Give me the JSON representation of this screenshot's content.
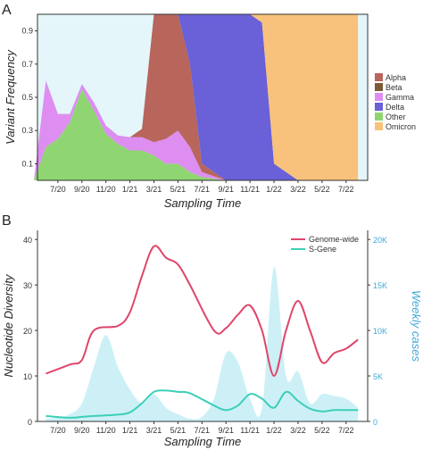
{
  "panels": [
    {
      "letter": "A"
    },
    {
      "letter": "B"
    }
  ],
  "chart_data": [
    {
      "type": "area",
      "stacked": true,
      "normalized": true,
      "title": "",
      "xlabel": "Sampling Time",
      "ylabel": "Variant Frequency",
      "x_tick_labels": [
        "7/20",
        "9/20",
        "11/20",
        "1/21",
        "3/21",
        "5/21",
        "7/21",
        "9/21",
        "11/21",
        "1/22",
        "3/22",
        "5/22",
        "7/22"
      ],
      "y_ticks": [
        0.1,
        0.3,
        0.5,
        0.7,
        0.9
      ],
      "y_tick_labels": [
        "0.1",
        "0.3",
        "0.5",
        "0.7",
        "0.9"
      ],
      "ylim": [
        0,
        1
      ],
      "legend_position": "right",
      "colors": {
        "Alpha": "#b8655c",
        "Beta": "#7b5a3a",
        "Gamma": "#dd8ef0",
        "Delta": "#6a60d8",
        "Other": "#8fd672",
        "Omicron": "#f8c27c",
        "Ancestral": "#e4f6fa"
      },
      "series_order": [
        "Other",
        "Gamma",
        "Alpha",
        "Delta",
        "Omicron"
      ],
      "legend": [
        "Alpha",
        "Beta",
        "Gamma",
        "Delta",
        "Other",
        "Omicron"
      ],
      "points": [
        {
          "x": "5/20",
          "Other": 0.0,
          "Gamma": 0.0,
          "Alpha": 0.0,
          "Delta": 0.0,
          "Omicron": 0.0
        },
        {
          "x": "6/20",
          "Other": 0.2,
          "Gamma": 0.4,
          "Alpha": 0.0,
          "Delta": 0.0,
          "Omicron": 0.0
        },
        {
          "x": "7/20",
          "Other": 0.25,
          "Gamma": 0.15,
          "Alpha": 0.0,
          "Delta": 0.0,
          "Omicron": 0.0
        },
        {
          "x": "8/20",
          "Other": 0.35,
          "Gamma": 0.05,
          "Alpha": 0.0,
          "Delta": 0.0,
          "Omicron": 0.0
        },
        {
          "x": "9/20",
          "Other": 0.55,
          "Gamma": 0.03,
          "Alpha": 0.0,
          "Delta": 0.0,
          "Omicron": 0.0
        },
        {
          "x": "10/20",
          "Other": 0.42,
          "Gamma": 0.05,
          "Alpha": 0.0,
          "Delta": 0.0,
          "Omicron": 0.0
        },
        {
          "x": "11/20",
          "Other": 0.28,
          "Gamma": 0.05,
          "Alpha": 0.0,
          "Delta": 0.0,
          "Omicron": 0.0
        },
        {
          "x": "12/20",
          "Other": 0.22,
          "Gamma": 0.05,
          "Alpha": 0.0,
          "Delta": 0.0,
          "Omicron": 0.0
        },
        {
          "x": "1/21",
          "Other": 0.18,
          "Gamma": 0.08,
          "Alpha": 0.0,
          "Delta": 0.0,
          "Omicron": 0.0
        },
        {
          "x": "2/21",
          "Other": 0.18,
          "Gamma": 0.08,
          "Alpha": 0.05,
          "Delta": 0.0,
          "Omicron": 0.0
        },
        {
          "x": "3/21",
          "Other": 0.15,
          "Gamma": 0.08,
          "Alpha": 0.77,
          "Delta": 0.0,
          "Omicron": 0.0
        },
        {
          "x": "4/21",
          "Other": 0.1,
          "Gamma": 0.15,
          "Alpha": 0.75,
          "Delta": 0.0,
          "Omicron": 0.0
        },
        {
          "x": "5/21",
          "Other": 0.1,
          "Gamma": 0.2,
          "Alpha": 0.7,
          "Delta": 0.0,
          "Omicron": 0.0
        },
        {
          "x": "6/21",
          "Other": 0.05,
          "Gamma": 0.15,
          "Alpha": 0.5,
          "Delta": 0.3,
          "Omicron": 0.0
        },
        {
          "x": "7/21",
          "Other": 0.02,
          "Gamma": 0.03,
          "Alpha": 0.05,
          "Delta": 0.9,
          "Omicron": 0.0
        },
        {
          "x": "9/21",
          "Other": 0.0,
          "Gamma": 0.0,
          "Alpha": 0.0,
          "Delta": 1.0,
          "Omicron": 0.0
        },
        {
          "x": "11/21",
          "Other": 0.0,
          "Gamma": 0.0,
          "Alpha": 0.0,
          "Delta": 1.0,
          "Omicron": 0.0
        },
        {
          "x": "12/21",
          "Other": 0.0,
          "Gamma": 0.0,
          "Alpha": 0.0,
          "Delta": 0.95,
          "Omicron": 0.05
        },
        {
          "x": "1/22",
          "Other": 0.0,
          "Gamma": 0.0,
          "Alpha": 0.0,
          "Delta": 0.1,
          "Omicron": 0.9
        },
        {
          "x": "3/22",
          "Other": 0.0,
          "Gamma": 0.0,
          "Alpha": 0.0,
          "Delta": 0.0,
          "Omicron": 1.0
        },
        {
          "x": "5/22",
          "Other": 0.0,
          "Gamma": 0.0,
          "Alpha": 0.0,
          "Delta": 0.0,
          "Omicron": 1.0
        },
        {
          "x": "7/22",
          "Other": 0.0,
          "Gamma": 0.0,
          "Alpha": 0.0,
          "Delta": 0.0,
          "Omicron": 1.0
        },
        {
          "x": "8/22",
          "Other": 0.0,
          "Gamma": 0.0,
          "Alpha": 0.0,
          "Delta": 0.0,
          "Omicron": 1.0
        }
      ]
    },
    {
      "type": "line",
      "title": "",
      "xlabel": "Sampling Time",
      "ylabel": "Nucleotide Diversity",
      "ylabel_right": "Weekly cases",
      "x_tick_labels": [
        "7/20",
        "9/20",
        "11/20",
        "1/21",
        "3/21",
        "5/21",
        "7/21",
        "9/21",
        "11/21",
        "1/22",
        "3/22",
        "5/22",
        "7/22"
      ],
      "y_ticks": [
        0,
        10,
        20,
        30,
        40
      ],
      "y_tick_labels": [
        "0",
        "10",
        "20",
        "30",
        "40"
      ],
      "y2_ticks": [
        0,
        5000,
        10000,
        15000,
        20000
      ],
      "y2_tick_labels": [
        "0",
        "5K",
        "10K",
        "15K",
        "20K"
      ],
      "ylim": [
        0,
        42
      ],
      "y2lim": [
        0,
        21000
      ],
      "legend_position": "top-right",
      "grid": false,
      "series": [
        {
          "name": "Genome-wide",
          "color": "#e0456a",
          "x": [
            "6/20",
            "8/20",
            "9/20",
            "10/20",
            "12/20",
            "1/21",
            "2/21",
            "3/21",
            "4/21",
            "5/21",
            "6/21",
            "8/21",
            "9/21",
            "10/21",
            "11/21",
            "12/21",
            "1/22",
            "2/22",
            "3/22",
            "4/22",
            "5/22",
            "6/22",
            "7/22",
            "8/22"
          ],
          "values": [
            10.5,
            12.5,
            13.5,
            20.0,
            21.0,
            24.0,
            32.0,
            38.5,
            36.0,
            34.5,
            30.0,
            20.0,
            20.5,
            23.5,
            25.5,
            20.0,
            10.0,
            20.0,
            26.5,
            20.0,
            13.0,
            15.0,
            16.0,
            18.0
          ]
        },
        {
          "name": "S-Gene",
          "color": "#3ccfb8",
          "x": [
            "6/20",
            "8/20",
            "9/20",
            "10/20",
            "12/20",
            "1/21",
            "2/21",
            "3/21",
            "4/21",
            "5/21",
            "6/21",
            "8/21",
            "9/21",
            "10/21",
            "11/21",
            "12/21",
            "1/22",
            "2/22",
            "3/22",
            "4/22",
            "5/22",
            "6/22",
            "7/22",
            "8/22"
          ],
          "values": [
            1.2,
            0.8,
            1.0,
            1.2,
            1.5,
            2.0,
            4.0,
            6.5,
            6.8,
            6.5,
            6.2,
            3.5,
            2.5,
            3.5,
            6.0,
            5.0,
            3.0,
            6.5,
            4.5,
            2.8,
            2.2,
            2.5,
            2.5,
            2.5
          ]
        },
        {
          "name": "Weekly cases",
          "axis": "right",
          "style": "filled-area",
          "color": "#cdf0f7",
          "x": [
            "6/20",
            "7/20",
            "8/20",
            "9/20",
            "10/20",
            "11/20",
            "12/20",
            "1/21",
            "2/21",
            "3/21",
            "4/21",
            "5/21",
            "6/21",
            "7/21",
            "8/21",
            "9/21",
            "10/21",
            "11/21",
            "12/21",
            "1/22",
            "2/22",
            "3/22",
            "4/22",
            "5/22",
            "6/22",
            "7/22",
            "8/22"
          ],
          "values": [
            300,
            400,
            800,
            2000,
            6000,
            9500,
            6000,
            3500,
            2000,
            3000,
            1500,
            800,
            300,
            500,
            2500,
            7500,
            6500,
            2500,
            1500,
            17000,
            5000,
            5500,
            2000,
            3000,
            2800,
            2500,
            1500
          ]
        }
      ]
    }
  ]
}
